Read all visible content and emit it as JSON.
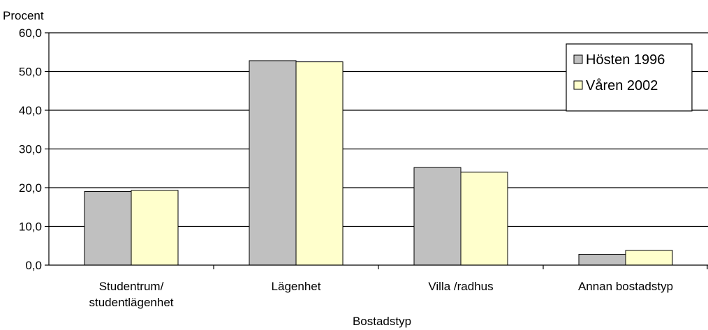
{
  "chart_data": {
    "type": "bar",
    "ylabel": "Procent",
    "xlabel": "Bostadstyp",
    "ylim": [
      0,
      60
    ],
    "yticks": [
      "0,0",
      "10,0",
      "20,0",
      "30,0",
      "40,0",
      "50,0",
      "60,0"
    ],
    "grid": true,
    "legend_position": "top-right",
    "categories": [
      [
        "Studentrum/",
        "studentlägenhet"
      ],
      [
        "Lägenhet"
      ],
      [
        "Villa /radhus"
      ],
      [
        "Annan bostadstyp"
      ]
    ],
    "series": [
      {
        "name": "Hösten 1996",
        "color": "#c0c0c0",
        "values": [
          19.0,
          52.8,
          25.2,
          2.8
        ]
      },
      {
        "name": "Våren 2002",
        "color": "#ffffcc",
        "values": [
          19.3,
          52.5,
          24.0,
          3.8
        ]
      }
    ]
  }
}
